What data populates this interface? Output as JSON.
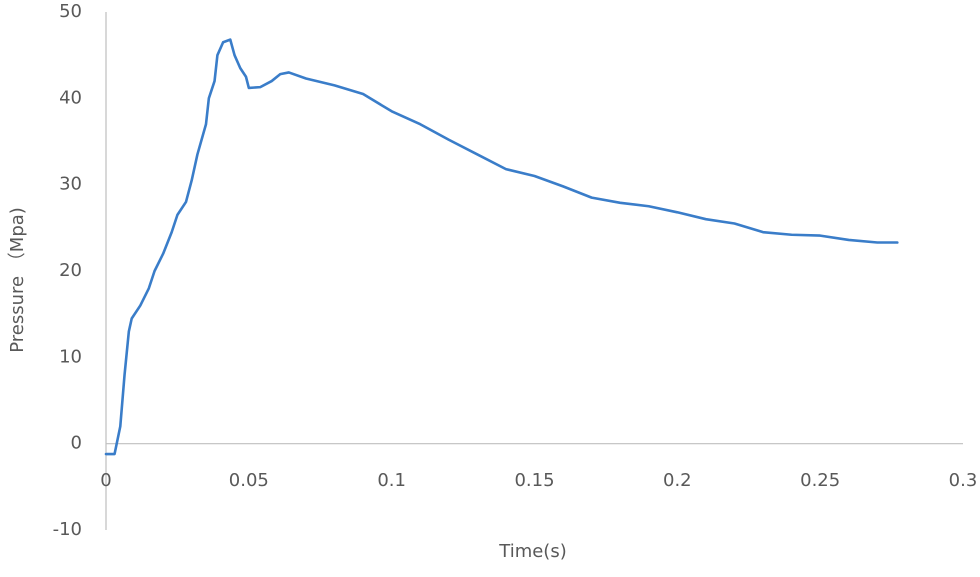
{
  "chart_data": {
    "type": "line",
    "x_label": "Time(s)",
    "y_label": "Pressure （Mpa)",
    "x": [
      0,
      0.003,
      0.005,
      0.0065,
      0.008,
      0.009,
      0.012,
      0.015,
      0.017,
      0.02,
      0.023,
      0.025,
      0.028,
      0.03,
      0.032,
      0.035,
      0.036,
      0.038,
      0.039,
      0.041,
      0.0435,
      0.045,
      0.047,
      0.049,
      0.05,
      0.054,
      0.058,
      0.061,
      0.064,
      0.07,
      0.08,
      0.09,
      0.1,
      0.11,
      0.12,
      0.13,
      0.14,
      0.15,
      0.16,
      0.17,
      0.18,
      0.19,
      0.2,
      0.21,
      0.22,
      0.23,
      0.24,
      0.25,
      0.26,
      0.27,
      0.277
    ],
    "series": [
      {
        "color": "#3a7dc9",
        "values": [
          -1.2,
          -1.2,
          2,
          8,
          13,
          14.5,
          16,
          18,
          20,
          22,
          24.5,
          26.5,
          28,
          30.5,
          33.5,
          37,
          40,
          42,
          45,
          46.5,
          46.8,
          45,
          43.5,
          42.5,
          41.2,
          41.3,
          42,
          42.8,
          43,
          42.3,
          41.5,
          40.5,
          38.5,
          37,
          35.2,
          33.5,
          31.8,
          31,
          29.8,
          28.5,
          27.9,
          27.5,
          26.8,
          26,
          25.5,
          24.5,
          24.2,
          24.1,
          23.6,
          23.3,
          23.3
        ]
      }
    ],
    "xlim": [
      0,
      0.3
    ],
    "xticks": [
      0,
      0.05,
      0.1,
      0.15,
      0.2,
      0.25,
      0.3
    ],
    "ylim": [
      -10,
      50
    ],
    "yticks": [
      -10,
      0,
      10,
      20,
      30,
      40,
      50
    ],
    "grid": false
  }
}
